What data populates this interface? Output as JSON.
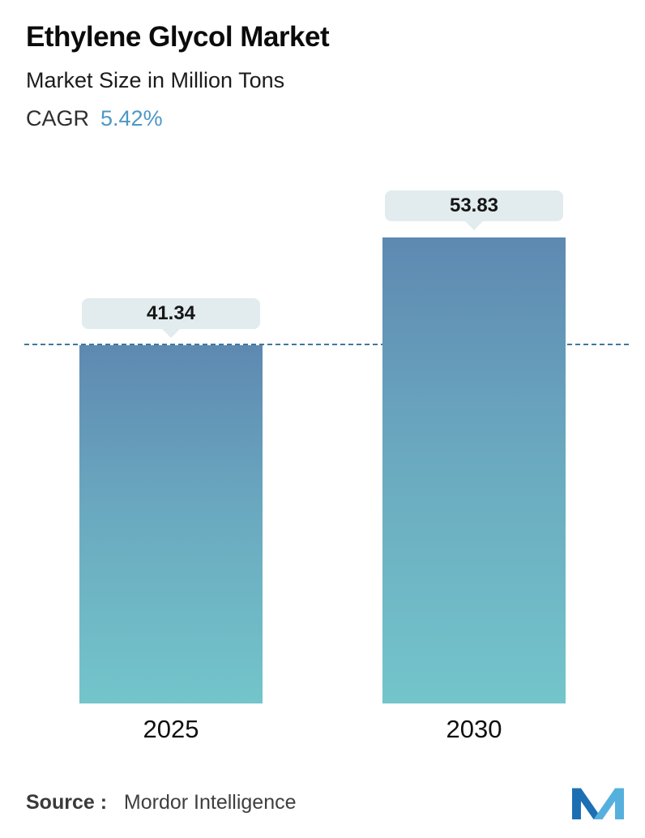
{
  "header": {
    "title": "Ethylene Glycol Market",
    "subtitle": "Market Size in Million Tons",
    "cagr_label": "CAGR",
    "cagr_value": "5.42%"
  },
  "chart_data": {
    "type": "bar",
    "categories": [
      "2025",
      "2030"
    ],
    "values": [
      41.34,
      53.83
    ],
    "title": "Ethylene Glycol Market",
    "subtitle": "Market Size in Million Tons",
    "unit": "Million Tons",
    "cagr": "5.42%",
    "xlabel": "",
    "ylabel": "Market Size in Million Tons",
    "ylim": [
      0,
      55
    ],
    "grid": false,
    "legend": false,
    "value_labels": [
      "41.34",
      "53.83"
    ],
    "dashed_reference_line_at": 41.34,
    "bar_gradient_top": "#5e89b1",
    "bar_gradient_bottom": "#73c5cb",
    "pill_background": "#e2ebed",
    "dashed_line_color": "#41779f"
  },
  "footer": {
    "source_label": "Source :",
    "source_value": "Mordor Intelligence",
    "logo": "mordor-intelligence-logo"
  },
  "colors": {
    "title": "#0b0b0b",
    "cagr_value": "#4c97c6",
    "footer_text": "#3f3f3f",
    "logo_dark_blue": "#1d6fb4",
    "logo_light_blue": "#56b0de"
  }
}
